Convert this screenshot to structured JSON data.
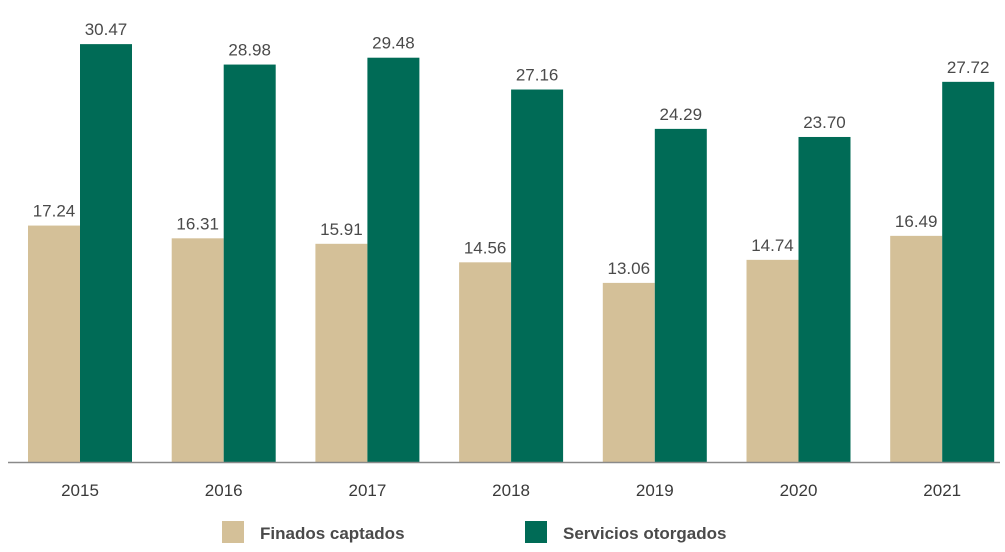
{
  "chart_data": {
    "type": "bar",
    "categories": [
      "2015",
      "2016",
      "2017",
      "2018",
      "2019",
      "2020",
      "2021"
    ],
    "series": [
      {
        "name": "Finados captados",
        "color": "#d4c098",
        "values": [
          17.24,
          16.31,
          15.91,
          14.56,
          13.06,
          14.74,
          16.49
        ],
        "labels": [
          "17.24",
          "16.31",
          "15.91",
          "14.56",
          "13.06",
          "14.74",
          "16.49"
        ]
      },
      {
        "name": "Servicios otorgados",
        "color": "#006b56",
        "values": [
          30.47,
          28.98,
          29.48,
          27.16,
          24.29,
          23.7,
          27.72
        ],
        "labels": [
          "30.47",
          "28.98",
          "29.48",
          "27.16",
          "24.29",
          "23.70",
          "27.72"
        ]
      }
    ],
    "ylim": [
      0,
      31.5
    ],
    "grid": false,
    "legend": "bottom-center",
    "axis_color": "#8a8a8a"
  }
}
